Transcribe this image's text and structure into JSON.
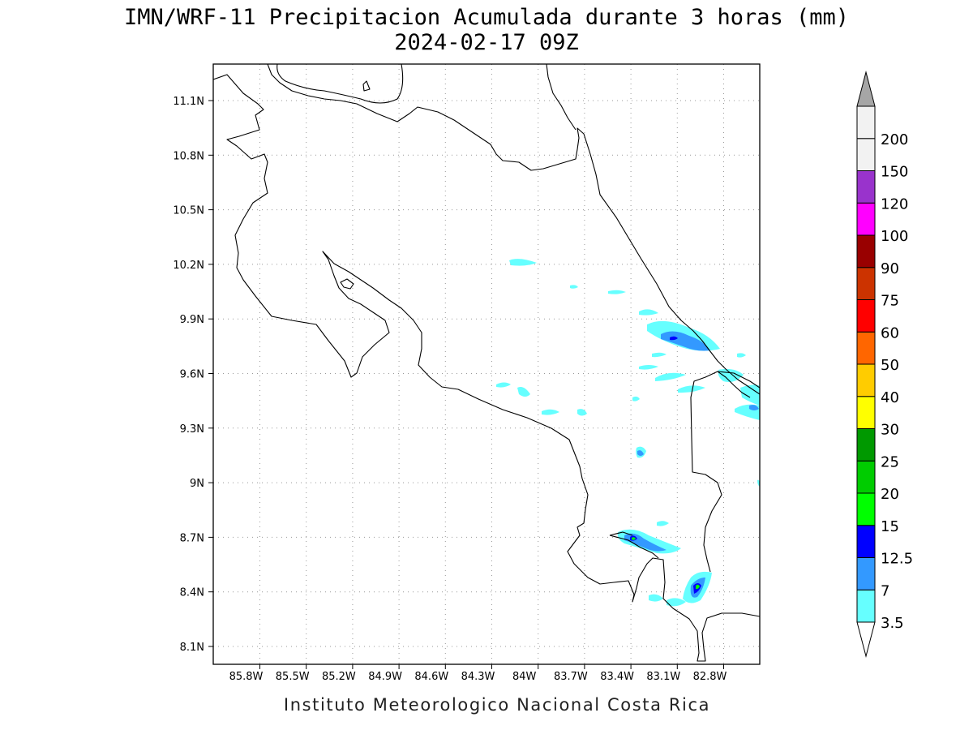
{
  "title": {
    "line1": "IMN/WRF-11 Precipitacion Acumulada durante 3 horas (mm)",
    "line2": "2024-02-17 09Z"
  },
  "map": {
    "lat_labels": [
      "11.1N",
      "10.8N",
      "10.5N",
      "10.2N",
      "9.9N",
      "9.6N",
      "9.3N",
      "9N",
      "8.7N",
      "8.4N",
      "8.1N"
    ],
    "lon_labels": [
      "85.8W",
      "85.5W",
      "85.2W",
      "84.9W",
      "84.6W",
      "84.3W",
      "84W",
      "83.7W",
      "83.4W",
      "83.1W",
      "82.8W"
    ]
  },
  "colorbar": {
    "levels": [
      {
        "label": "3.5",
        "color": "#ffffff"
      },
      {
        "label": "7",
        "color": "#66ffff"
      },
      {
        "label": "12.5",
        "color": "#3399ff"
      },
      {
        "label": "15",
        "color": "#0000ff"
      },
      {
        "label": "20",
        "color": "#00ff00"
      },
      {
        "label": "25",
        "color": "#00cc00"
      },
      {
        "label": "30",
        "color": "#009900"
      },
      {
        "label": "40",
        "color": "#ffff00"
      },
      {
        "label": "50",
        "color": "#ffcc00"
      },
      {
        "label": "60",
        "color": "#ff6600"
      },
      {
        "label": "75",
        "color": "#ff0000"
      },
      {
        "label": "90",
        "color": "#cc3300"
      },
      {
        "label": "100",
        "color": "#990000"
      },
      {
        "label": "120",
        "color": "#ff00ff"
      },
      {
        "label": "150",
        "color": "#9933cc"
      },
      {
        "label": "200",
        "color": "#f2f2f2"
      }
    ],
    "over_color": "#a6a6a6",
    "under_color": "#ffffff"
  },
  "credit": "Instituto Meteorologico Nacional Costa Rica"
}
